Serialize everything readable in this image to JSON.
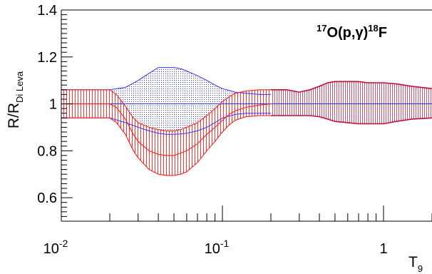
{
  "colors": {
    "blue": "#3333ff",
    "red": "#ff2020",
    "dark_red": "#c0103a",
    "band_fill": "#d05070"
  },
  "chart_data": {
    "type": "area",
    "reaction_label": {
      "sup1": "17",
      "main1": "O(p,",
      "gamma": "γ",
      "main2": ")",
      "sup2": "18",
      "main3": "F"
    },
    "xlabel": {
      "main": "T",
      "sub": "9"
    },
    "ylabel": {
      "main": "R/R",
      "sub": "Di Leva"
    },
    "xscale": "log",
    "xlim": [
      0.01,
      2.0
    ],
    "ylim": [
      0.5,
      1.4
    ],
    "x_tick_labels": [
      {
        "value": 0.01,
        "base": "10",
        "exp": "-2"
      },
      {
        "value": 0.1,
        "base": "10",
        "exp": "-1"
      },
      {
        "value": 1,
        "base": "1",
        "exp": ""
      }
    ],
    "y_ticks": [
      {
        "value": 0.6,
        "label": "0.6"
      },
      {
        "value": 0.8,
        "label": "0.8"
      },
      {
        "value": 1.0,
        "label": "1"
      },
      {
        "value": 1.2,
        "label": "1.2"
      },
      {
        "value": 1.4,
        "label": "1.4"
      }
    ],
    "reference_line": 1.0,
    "series": [
      {
        "role": "blue-band",
        "x": [
          0.01,
          0.02,
          0.025,
          0.03,
          0.035,
          0.04,
          0.045,
          0.05,
          0.055,
          0.06,
          0.07,
          0.08,
          0.09,
          0.1,
          0.12,
          0.14,
          0.17,
          0.2
        ],
        "upper": [
          1.06,
          1.06,
          1.07,
          1.1,
          1.13,
          1.155,
          1.155,
          1.155,
          1.15,
          1.14,
          1.12,
          1.1,
          1.08,
          1.065,
          1.05,
          1.045,
          1.04,
          1.04
        ],
        "lower": [
          0.94,
          0.94,
          0.92,
          0.9,
          0.885,
          0.875,
          0.87,
          0.87,
          0.872,
          0.875,
          0.885,
          0.9,
          0.92,
          0.94,
          0.955,
          0.96,
          0.96,
          0.96
        ]
      },
      {
        "role": "red-band",
        "x": [
          0.01,
          0.015,
          0.02,
          0.022,
          0.025,
          0.028,
          0.03,
          0.035,
          0.04,
          0.045,
          0.05,
          0.055,
          0.06,
          0.07,
          0.08,
          0.09,
          0.1,
          0.11,
          0.12,
          0.14,
          0.17,
          0.2
        ],
        "upper": [
          1.06,
          1.06,
          1.06,
          1.04,
          0.99,
          0.94,
          0.92,
          0.9,
          0.89,
          0.885,
          0.885,
          0.89,
          0.9,
          0.92,
          0.95,
          0.98,
          1.01,
          1.03,
          1.045,
          1.055,
          1.06,
          1.06
        ],
        "mid": [
          1.0,
          1.0,
          1.0,
          0.985,
          0.935,
          0.87,
          0.84,
          0.8,
          0.785,
          0.78,
          0.78,
          0.79,
          0.8,
          0.83,
          0.87,
          0.9,
          0.93,
          0.955,
          0.97,
          0.985,
          0.995,
          1.0
        ],
        "lower": [
          0.94,
          0.94,
          0.94,
          0.92,
          0.87,
          0.8,
          0.77,
          0.72,
          0.7,
          0.695,
          0.695,
          0.7,
          0.71,
          0.75,
          0.8,
          0.84,
          0.88,
          0.91,
          0.93,
          0.945,
          0.95,
          0.95
        ]
      },
      {
        "role": "dark-band",
        "x": [
          0.2,
          0.25,
          0.3,
          0.35,
          0.4,
          0.45,
          0.5,
          0.6,
          0.7,
          0.8,
          1.0,
          1.2,
          1.5,
          2.0
        ],
        "upper": [
          1.06,
          1.06,
          1.05,
          1.06,
          1.075,
          1.09,
          1.095,
          1.095,
          1.095,
          1.09,
          1.09,
          1.085,
          1.075,
          1.065
        ],
        "lower": [
          0.95,
          0.95,
          0.95,
          0.95,
          0.945,
          0.935,
          0.925,
          0.92,
          0.915,
          0.915,
          0.915,
          0.925,
          0.935,
          0.94
        ]
      }
    ]
  }
}
